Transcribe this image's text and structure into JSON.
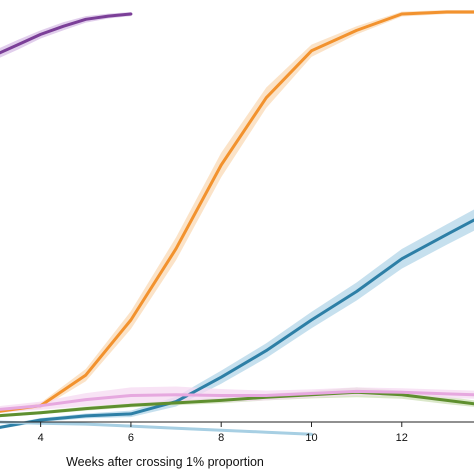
{
  "chart_data": {
    "type": "line",
    "title": "",
    "xlabel": "Weeks after crossing 1% proportion",
    "ylabel": "",
    "xlim": [
      3.1,
      13.6
    ],
    "ylim": [
      0,
      1
    ],
    "x_ticks": [
      4,
      6,
      8,
      10,
      12
    ],
    "grid": false,
    "legend": "none",
    "series": [
      {
        "color": "#7b3f98",
        "band_color": "#d7bde6",
        "x": [
          3,
          3.5,
          4,
          4.5,
          5,
          5.5,
          6
        ],
        "values": [
          0.895,
          0.92,
          0.945,
          0.965,
          0.982,
          0.99,
          0.995
        ],
        "ci": [
          0.012,
          0.012,
          0.01,
          0.01,
          0.008,
          0.006,
          0.005
        ]
      },
      {
        "color": "#f2922e",
        "band_color": "#fad9b5",
        "x": [
          3,
          4,
          5,
          6,
          7,
          8,
          9,
          10,
          11,
          12,
          13,
          13.6
        ],
        "values": [
          0.02,
          0.035,
          0.11,
          0.245,
          0.42,
          0.625,
          0.79,
          0.905,
          0.955,
          0.995,
          1.0,
          1.0
        ],
        "ci": [
          0.004,
          0.007,
          0.015,
          0.022,
          0.028,
          0.03,
          0.025,
          0.015,
          0.01,
          0.006,
          0.005,
          0.005
        ]
      },
      {
        "color": "#2d7fa6",
        "band_color": "#b3d6e8",
        "x": [
          3,
          4,
          5,
          6,
          7,
          8,
          9,
          10,
          11,
          12,
          13,
          13.6
        ],
        "values": [
          -0.02,
          0.0,
          0.01,
          0.015,
          0.045,
          0.105,
          0.17,
          0.245,
          0.315,
          0.395,
          0.455,
          0.49
        ],
        "ci": [
          0.004,
          0.005,
          0.006,
          0.008,
          0.012,
          0.016,
          0.018,
          0.02,
          0.022,
          0.024,
          0.025,
          0.026
        ]
      },
      {
        "color": "#5f8f2f",
        "band_color": "#cfe0b8",
        "x": [
          3,
          4,
          5,
          6,
          7,
          8,
          9,
          10,
          11,
          12,
          13,
          13.6
        ],
        "values": [
          0.01,
          0.018,
          0.028,
          0.036,
          0.042,
          0.048,
          0.056,
          0.062,
          0.068,
          0.062,
          0.048,
          0.04
        ],
        "ci": [
          0.004,
          0.004,
          0.005,
          0.005,
          0.006,
          0.007,
          0.008,
          0.009,
          0.012,
          0.01,
          0.009,
          0.008
        ]
      },
      {
        "color": "#e6a8df",
        "band_color": "#f5d9f1",
        "x": [
          3,
          4,
          5,
          6,
          7,
          8,
          9,
          10,
          11,
          12,
          13,
          13.6
        ],
        "values": [
          0.025,
          0.035,
          0.05,
          0.06,
          0.062,
          0.06,
          0.06,
          0.065,
          0.07,
          0.068,
          0.064,
          0.062
        ],
        "ci": [
          0.008,
          0.01,
          0.016,
          0.02,
          0.02,
          0.016,
          0.012,
          0.01,
          0.01,
          0.01,
          0.01,
          0.01
        ]
      },
      {
        "color": "#a7cfe3",
        "band_color": "#dcedf5",
        "x": [
          3,
          4,
          5,
          6,
          7,
          8,
          9,
          10
        ],
        "values": [
          -0.005,
          -0.008,
          -0.01,
          -0.015,
          -0.02,
          -0.025,
          -0.03,
          -0.035
        ],
        "ci": [
          0.003,
          0.003,
          0.003,
          0.003,
          0.003,
          0.003,
          0.003,
          0.003
        ]
      }
    ]
  }
}
